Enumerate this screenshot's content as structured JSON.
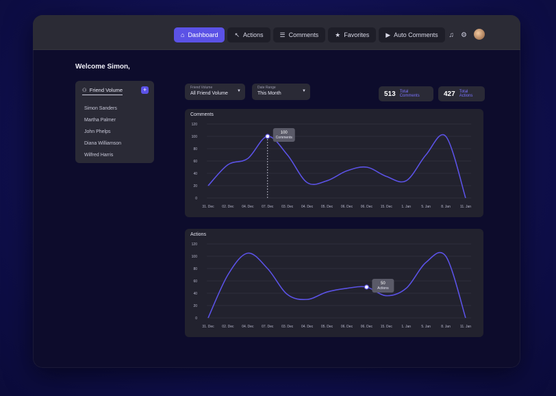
{
  "nav": {
    "tabs": [
      {
        "label": "Dashboard",
        "icon": "home-icon",
        "glyph": "⌂",
        "active": true
      },
      {
        "label": "Actions",
        "icon": "cursor-icon",
        "glyph": "↖",
        "active": false
      },
      {
        "label": "Comments",
        "icon": "comments-icon",
        "glyph": "☰",
        "active": false
      },
      {
        "label": "Favorites",
        "icon": "star-icon",
        "glyph": "★",
        "active": false
      },
      {
        "label": "Auto Comments",
        "icon": "play-icon",
        "glyph": "▶",
        "active": false
      }
    ],
    "icons": [
      {
        "name": "bell-icon",
        "glyph": "♫"
      },
      {
        "name": "gear-icon",
        "glyph": "⚙"
      }
    ]
  },
  "welcome": "Welcome Simon,",
  "friends": {
    "title": "Friend Volume",
    "add_label": "+",
    "items": [
      "Simon Sanders",
      "Martha Palmer",
      "John Phelps",
      "Diana Williamson",
      "Wilfred Harris"
    ]
  },
  "filters": [
    {
      "label": "Friend Volume",
      "value": "All Friend Volume"
    },
    {
      "label": "Date Range",
      "value": "This Month"
    }
  ],
  "stats": [
    {
      "value": "513",
      "label": "Total Comments"
    },
    {
      "value": "427",
      "label": "Total Actions"
    }
  ],
  "comments_chart": {
    "title": "Comments",
    "tooltip_value": "100",
    "tooltip_label": "Comments"
  },
  "actions_chart": {
    "title": "Actions",
    "tooltip_value": "50",
    "tooltip_label": "Actions"
  },
  "chart_data": [
    {
      "type": "line",
      "title": "Comments",
      "x": [
        "31. Dec",
        "02. Dec",
        "04. Dec",
        "07. Dec",
        "03. Dec",
        "04. Dec",
        "05. Dec",
        "06. Dec",
        "06. Dec",
        "15. Dec",
        "1. Jan",
        "5. Jan",
        "8. Jan",
        "11. Jan"
      ],
      "yticks": [
        0,
        20,
        40,
        60,
        80,
        100,
        120
      ],
      "ylim": [
        0,
        120
      ],
      "series": [
        {
          "values": [
            20,
            54,
            64,
            100,
            70,
            25,
            28,
            44,
            50,
            35,
            28,
            70,
            100,
            0
          ]
        }
      ],
      "highlight_index": 3,
      "color": "#5b52e6"
    },
    {
      "type": "line",
      "title": "Actions",
      "x": [
        "31. Dec",
        "02. Dec",
        "04. Dec",
        "07. Dec",
        "03. Dec",
        "04. Dec",
        "05. Dec",
        "06. Dec",
        "06. Dec",
        "15. Dec",
        "1. Jan",
        "5. Jan",
        "8. Jan",
        "11. Jan"
      ],
      "yticks": [
        0,
        20,
        40,
        60,
        80,
        100,
        120
      ],
      "ylim": [
        0,
        120
      ],
      "series": [
        {
          "values": [
            0,
            70,
            105,
            80,
            38,
            30,
            42,
            48,
            50,
            36,
            48,
            90,
            100,
            0
          ]
        }
      ],
      "highlight_index": 8,
      "color": "#5b52e6"
    }
  ]
}
